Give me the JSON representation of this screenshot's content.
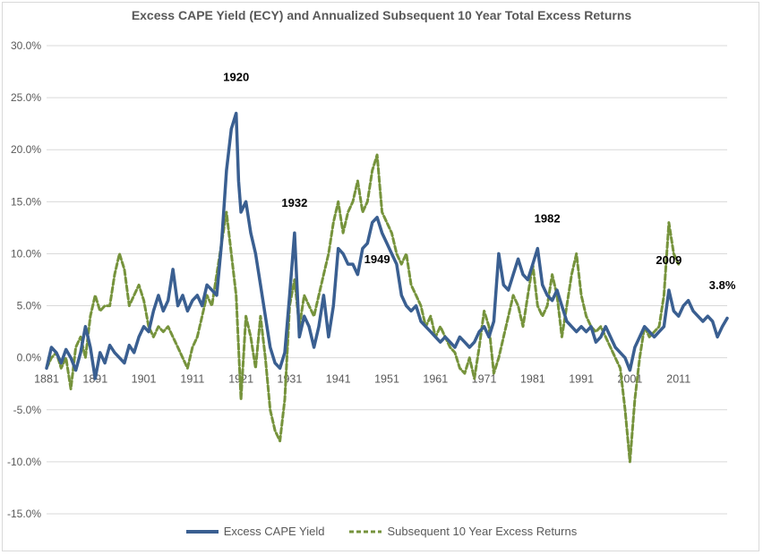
{
  "chart_data": {
    "type": "line",
    "title": "Excess CAPE Yield (ECY) and Annualized Subsequent 10 Year Total Excess Returns",
    "ylim": [
      -0.15,
      0.3
    ],
    "yticks": [
      "30.0%",
      "25.0%",
      "20.0%",
      "15.0%",
      "10.0%",
      "5.0%",
      "0.0%",
      "-5.0%",
      "-10.0%",
      "-15.0%"
    ],
    "ytick_values": [
      0.3,
      0.25,
      0.2,
      0.15,
      0.1,
      0.05,
      0.0,
      -0.05,
      -0.1,
      -0.15
    ],
    "xlim": [
      1881,
      2021
    ],
    "xticks": [
      "1881",
      "1891",
      "1901",
      "1911",
      "1921",
      "1931",
      "1941",
      "1951",
      "1961",
      "1971",
      "1981",
      "1991",
      "2001",
      "2011"
    ],
    "xtick_values": [
      1881,
      1891,
      1901,
      1911,
      1921,
      1931,
      1941,
      1951,
      1961,
      1971,
      1981,
      1991,
      2001,
      2011
    ],
    "grid": "horizontal",
    "legend_position": "bottom",
    "series": [
      {
        "name": "Excess CAPE Yield",
        "color": "#3a5f91",
        "style": "solid",
        "x": [
          1881,
          1882,
          1883,
          1884,
          1885,
          1886,
          1887,
          1888,
          1889,
          1890,
          1891,
          1892,
          1893,
          1894,
          1895,
          1896,
          1897,
          1898,
          1899,
          1900,
          1901,
          1902,
          1903,
          1904,
          1905,
          1906,
          1907,
          1908,
          1909,
          1910,
          1911,
          1912,
          1913,
          1914,
          1915,
          1916,
          1917,
          1918,
          1919,
          1920,
          1920.5,
          1921,
          1922,
          1923,
          1924,
          1925,
          1926,
          1927,
          1928,
          1929,
          1930,
          1931,
          1932,
          1933,
          1934,
          1935,
          1936,
          1937,
          1938,
          1939,
          1940,
          1941,
          1942,
          1943,
          1944,
          1945,
          1946,
          1947,
          1948,
          1949,
          1950,
          1951,
          1952,
          1953,
          1954,
          1955,
          1956,
          1957,
          1958,
          1959,
          1960,
          1961,
          1962,
          1963,
          1964,
          1965,
          1966,
          1967,
          1968,
          1969,
          1970,
          1971,
          1972,
          1973,
          1974,
          1975,
          1976,
          1977,
          1978,
          1979,
          1980,
          1981,
          1982,
          1983,
          1984,
          1985,
          1986,
          1987,
          1988,
          1989,
          1990,
          1991,
          1992,
          1993,
          1994,
          1995,
          1996,
          1997,
          1998,
          1999,
          2000,
          2001,
          2002,
          2003,
          2004,
          2005,
          2006,
          2007,
          2008,
          2009,
          2010,
          2011,
          2012,
          2013,
          2014,
          2015,
          2016,
          2017,
          2018,
          2019,
          2020,
          2021
        ],
        "values": [
          -0.01,
          0.01,
          0.005,
          -0.005,
          0.008,
          0.0,
          -0.012,
          0.005,
          0.03,
          0.01,
          -0.02,
          0.005,
          -0.005,
          0.012,
          0.005,
          0.0,
          -0.005,
          0.012,
          0.005,
          0.02,
          0.03,
          0.025,
          0.045,
          0.06,
          0.045,
          0.055,
          0.085,
          0.05,
          0.06,
          0.045,
          0.055,
          0.06,
          0.05,
          0.07,
          0.065,
          0.06,
          0.11,
          0.18,
          0.22,
          0.235,
          0.17,
          0.14,
          0.15,
          0.12,
          0.1,
          0.07,
          0.04,
          0.01,
          -0.005,
          -0.01,
          0.005,
          0.06,
          0.12,
          0.02,
          0.04,
          0.03,
          0.01,
          0.03,
          0.06,
          0.02,
          0.05,
          0.105,
          0.1,
          0.09,
          0.09,
          0.08,
          0.105,
          0.11,
          0.13,
          0.135,
          0.12,
          0.11,
          0.1,
          0.09,
          0.06,
          0.05,
          0.045,
          0.05,
          0.035,
          0.03,
          0.025,
          0.02,
          0.015,
          0.02,
          0.015,
          0.01,
          0.02,
          0.015,
          0.01,
          0.015,
          0.025,
          0.03,
          0.02,
          0.035,
          0.1,
          0.07,
          0.065,
          0.08,
          0.095,
          0.08,
          0.075,
          0.09,
          0.105,
          0.07,
          0.06,
          0.055,
          0.065,
          0.05,
          0.035,
          0.03,
          0.025,
          0.03,
          0.025,
          0.03,
          0.015,
          0.02,
          0.03,
          0.02,
          0.01,
          0.005,
          0.0,
          -0.012,
          0.01,
          0.02,
          0.03,
          0.025,
          0.02,
          0.025,
          0.03,
          0.065,
          0.045,
          0.04,
          0.05,
          0.055,
          0.045,
          0.04,
          0.035,
          0.04,
          0.035,
          0.02,
          0.03,
          0.038
        ]
      },
      {
        "name": "Subsequent 10 Year Excess Returns",
        "color": "#76933c",
        "style": "dashed",
        "x": [
          1881,
          1882,
          1883,
          1884,
          1885,
          1886,
          1887,
          1888,
          1889,
          1890,
          1891,
          1892,
          1893,
          1894,
          1895,
          1896,
          1897,
          1898,
          1899,
          1900,
          1901,
          1902,
          1903,
          1904,
          1905,
          1906,
          1907,
          1908,
          1909,
          1910,
          1911,
          1912,
          1913,
          1914,
          1915,
          1916,
          1917,
          1918,
          1919,
          1920,
          1921,
          1922,
          1923,
          1924,
          1925,
          1926,
          1927,
          1928,
          1929,
          1930,
          1931,
          1932,
          1933,
          1934,
          1935,
          1936,
          1937,
          1938,
          1939,
          1940,
          1941,
          1942,
          1943,
          1944,
          1945,
          1946,
          1947,
          1948,
          1949,
          1950,
          1951,
          1952,
          1953,
          1954,
          1955,
          1956,
          1957,
          1958,
          1959,
          1960,
          1961,
          1962,
          1963,
          1964,
          1965,
          1966,
          1967,
          1968,
          1969,
          1970,
          1971,
          1972,
          1973,
          1974,
          1975,
          1976,
          1977,
          1978,
          1979,
          1980,
          1981,
          1982,
          1983,
          1984,
          1985,
          1986,
          1987,
          1988,
          1989,
          1990,
          1991,
          1992,
          1993,
          1994,
          1995,
          1996,
          1997,
          1998,
          1999,
          2000,
          2001,
          2002,
          2003,
          2004,
          2005,
          2006,
          2007,
          2008,
          2009,
          2010,
          2011
        ],
        "values": [
          -0.01,
          0.0,
          0.005,
          -0.01,
          0.0,
          -0.03,
          0.01,
          0.02,
          0.0,
          0.04,
          0.06,
          0.045,
          0.05,
          0.05,
          0.08,
          0.1,
          0.085,
          0.05,
          0.06,
          0.07,
          0.055,
          0.03,
          0.02,
          0.03,
          0.025,
          0.03,
          0.02,
          0.01,
          0.0,
          -0.01,
          0.01,
          0.02,
          0.04,
          0.06,
          0.05,
          0.08,
          0.11,
          0.14,
          0.1,
          0.06,
          -0.04,
          0.04,
          0.02,
          -0.01,
          0.04,
          0.0,
          -0.05,
          -0.07,
          -0.08,
          -0.04,
          0.05,
          0.075,
          0.03,
          0.06,
          0.05,
          0.04,
          0.06,
          0.08,
          0.1,
          0.13,
          0.15,
          0.12,
          0.14,
          0.15,
          0.17,
          0.14,
          0.15,
          0.18,
          0.195,
          0.14,
          0.13,
          0.12,
          0.1,
          0.09,
          0.1,
          0.07,
          0.06,
          0.05,
          0.03,
          0.04,
          0.02,
          0.03,
          0.02,
          0.01,
          0.005,
          -0.01,
          -0.015,
          0.0,
          -0.02,
          0.01,
          0.045,
          0.03,
          -0.015,
          0.0,
          0.02,
          0.04,
          0.06,
          0.05,
          0.03,
          0.06,
          0.09,
          0.05,
          0.04,
          0.05,
          0.08,
          0.06,
          0.02,
          0.05,
          0.08,
          0.1,
          0.06,
          0.04,
          0.03,
          0.025,
          0.03,
          0.02,
          0.01,
          0.0,
          -0.01,
          -0.05,
          -0.1,
          -0.04,
          0.0,
          0.03,
          0.02,
          0.025,
          0.03,
          0.06,
          0.13,
          0.1,
          0.09
        ]
      }
    ],
    "annotations": [
      {
        "text": "1920",
        "x": 1920,
        "y": 0.266
      },
      {
        "text": "1932",
        "x": 1932,
        "y": 0.145
      },
      {
        "text": "1949",
        "x": 1949,
        "y": 0.091
      },
      {
        "text": "1982",
        "x": 1984,
        "y": 0.13
      },
      {
        "text": "2009",
        "x": 2009,
        "y": 0.09
      },
      {
        "text": "3.8%",
        "x": 2020,
        "y": 0.066
      }
    ]
  }
}
